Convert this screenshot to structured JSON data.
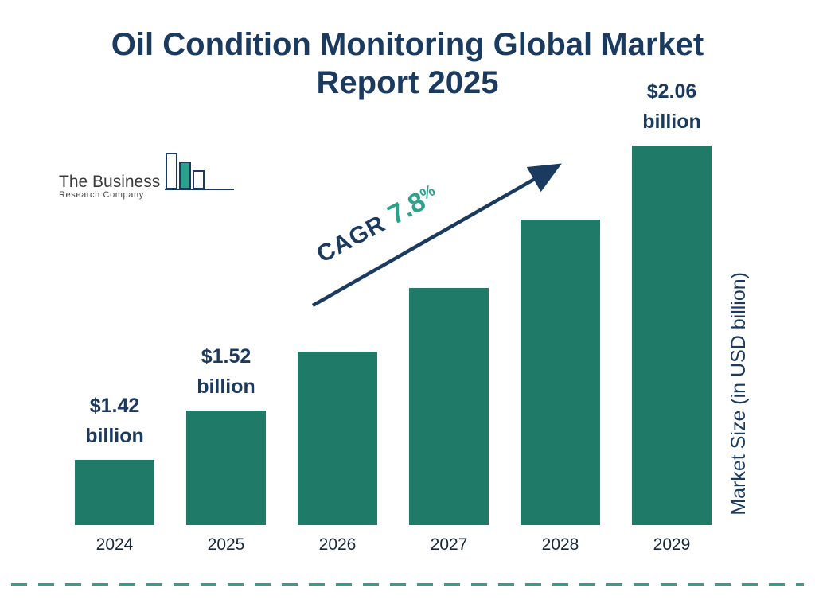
{
  "title": "Oil Condition Monitoring Global Market Report 2025",
  "logo": {
    "line1": "The Business",
    "line2": "Research Company"
  },
  "colors": {
    "navy": "#1B3A5F",
    "bar_teal": "#1F7A68",
    "accent_teal": "#2BA28C"
  },
  "chart_data": {
    "type": "bar",
    "title": "Oil Condition Monitoring Global Market Report 2025",
    "categories": [
      "2024",
      "2025",
      "2026",
      "2027",
      "2028",
      "2029"
    ],
    "values": [
      1.42,
      1.52,
      1.64,
      1.77,
      1.91,
      2.06
    ],
    "value_labels": [
      "$1.42 billion",
      "$1.52 billion",
      "",
      "",
      "",
      "$2.06 billion"
    ],
    "unit": "USD billion",
    "xlabel": "",
    "ylabel": "Market Size (in USD billion)",
    "legend": "none",
    "grid": "off",
    "cagr": {
      "label": "CAGR",
      "value": "7.8",
      "suffix": "%"
    }
  }
}
